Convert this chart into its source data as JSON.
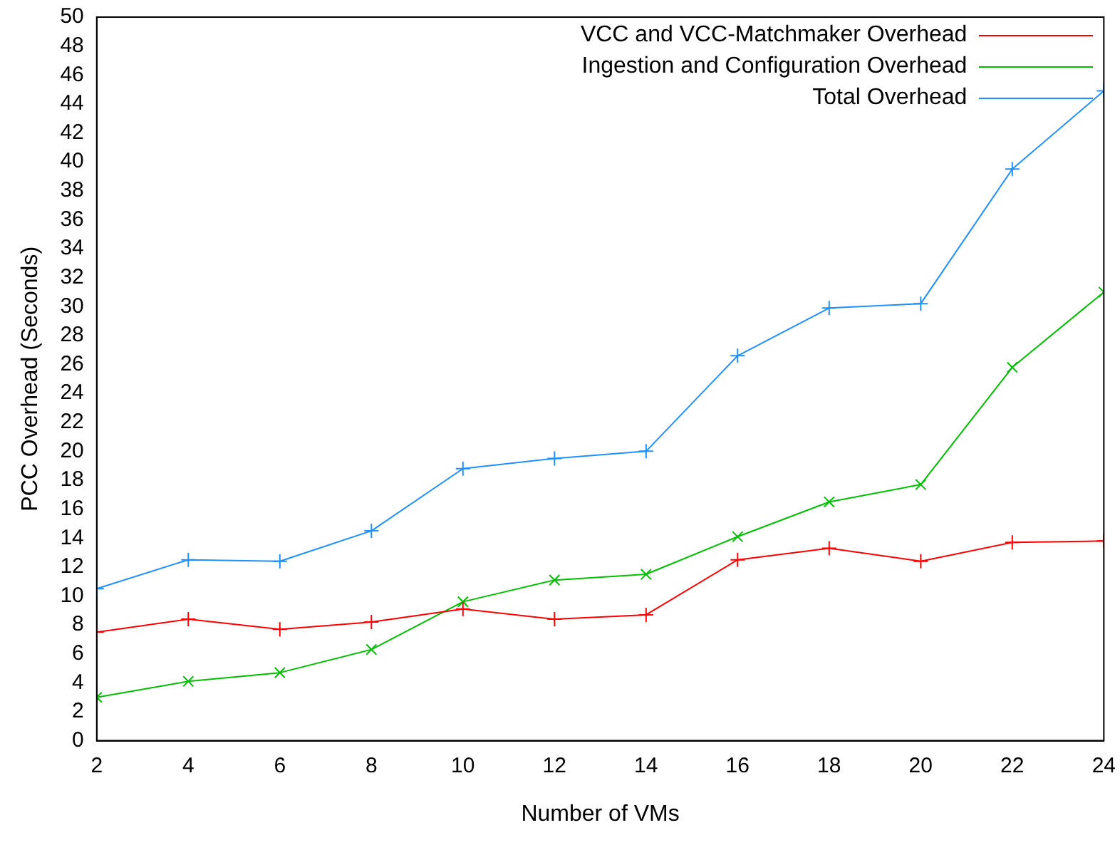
{
  "chart_data": {
    "type": "line",
    "xlabel": "Number of VMs",
    "ylabel": "PCC Overhead (Seconds)",
    "x": [
      2,
      4,
      6,
      8,
      10,
      12,
      14,
      16,
      18,
      20,
      22,
      24
    ],
    "series": [
      {
        "name": "VCC and VCC-Matchmaker Overhead",
        "color": "#ff0000",
        "marker": "cross",
        "values": [
          7.5,
          8.4,
          7.7,
          8.2,
          9.1,
          8.4,
          8.7,
          12.5,
          13.3,
          12.4,
          13.7,
          13.8
        ]
      },
      {
        "name": "Ingestion and Configuration Overhead",
        "color": "#00c000",
        "marker": "crossRot",
        "values": [
          3.0,
          4.1,
          4.7,
          6.3,
          9.6,
          11.1,
          11.5,
          14.1,
          16.5,
          17.7,
          25.8,
          31.0
        ]
      },
      {
        "name": "Total Overhead",
        "color": "#1e90ff",
        "marker": "cross",
        "values": [
          10.5,
          12.5,
          12.4,
          14.5,
          18.8,
          19.5,
          20.0,
          26.6,
          29.9,
          30.2,
          39.5,
          44.9
        ]
      }
    ],
    "xlim": [
      2,
      24
    ],
    "xticks": [
      2,
      4,
      6,
      8,
      10,
      12,
      14,
      16,
      18,
      20,
      22,
      24
    ],
    "ylim": [
      0,
      50
    ],
    "yticks": [
      0,
      2,
      4,
      6,
      8,
      10,
      12,
      14,
      16,
      18,
      20,
      22,
      24,
      26,
      28,
      30,
      32,
      34,
      36,
      38,
      40,
      42,
      44,
      46,
      48,
      50
    ],
    "grid": false,
    "legend": "top right",
    "line_style": "solid"
  }
}
